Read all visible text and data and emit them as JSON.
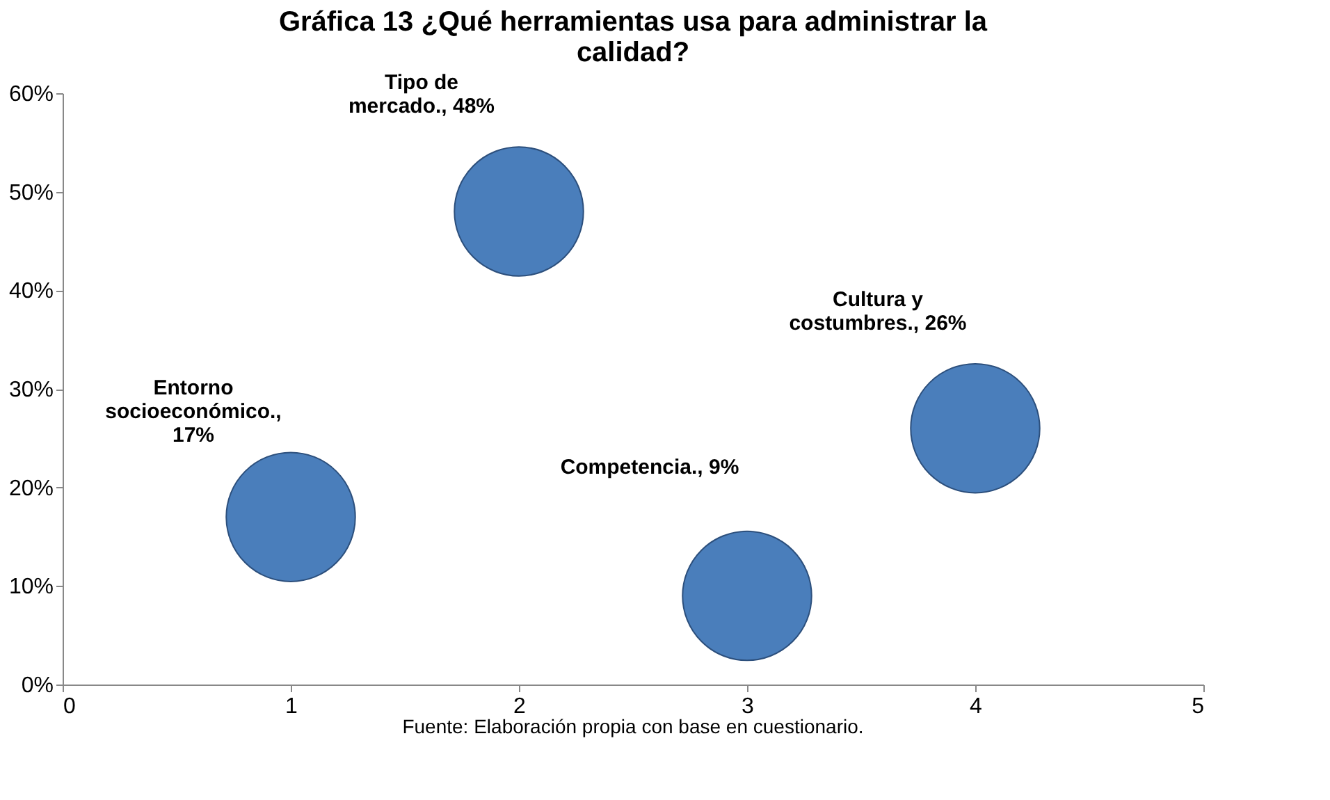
{
  "chart_data": {
    "type": "bubble",
    "title": "Gráfica 13 ¿Qué herramientas usa para administrar la calidad?",
    "annotations": [
      "Fuente: Elaboración propia con base en cuestionario."
    ],
    "series": [
      {
        "color": "#4a7ebb",
        "x": [
          1,
          2,
          3,
          4
        ],
        "values": [
          17,
          48,
          9,
          26
        ],
        "sizes": [
          1,
          1,
          1,
          1
        ],
        "value_labels": [
          "Entorno socioeconómico., 17%",
          "Tipo de mercado., 48%",
          "Competencia., 9%",
          "Cultura y costumbres., 26%"
        ]
      }
    ],
    "xlim": [
      0,
      5
    ],
    "xticks": [
      0,
      1,
      2,
      3,
      4,
      5
    ],
    "ylim": [
      0,
      60
    ],
    "yticks": [
      {
        "value": 0,
        "label": "0%"
      },
      {
        "value": 10,
        "label": "10%"
      },
      {
        "value": 20,
        "label": "20%"
      },
      {
        "value": 30,
        "label": "30%"
      },
      {
        "value": 40,
        "label": "40%"
      },
      {
        "value": 50,
        "label": "50%"
      },
      {
        "value": 60,
        "label": "60%"
      }
    ],
    "grid": false
  }
}
